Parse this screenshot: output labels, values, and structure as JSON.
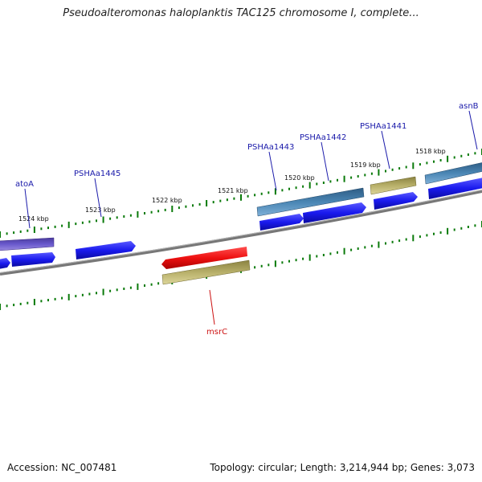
{
  "title": "Pseudoalteromonas haloplanktis TAC125 chromosome I, complete...",
  "footer": {
    "accession_label": "Accession:",
    "accession": "NC_007481",
    "topology_label": "Topology:",
    "topology": "circular",
    "length_label": "Length:",
    "length": "3,214,944 bp",
    "genes_label": "Genes:",
    "genes": "3,073"
  },
  "colors": {
    "backbone": "#7a7a7a",
    "tick": "#0a7a0a",
    "cds": "#1a1aee",
    "gene_blue_gray": "#4a86b4",
    "gene_purple": "#6a5acd",
    "gene_khaki": "#b8b06a",
    "gene_red": "#ee1111",
    "label_blue": "#1a1aaa",
    "label_red": "#cc1111"
  },
  "scale": {
    "unit": "kbp",
    "labels": [
      "1524 kbp",
      "1523 kbp",
      "1522 kbp",
      "1521 kbp",
      "1520 kbp",
      "1519 kbp",
      "1518 kbp"
    ]
  },
  "genes": [
    {
      "name": "atoA",
      "color": "label_blue"
    },
    {
      "name": "PSHAa1445",
      "color": "label_blue"
    },
    {
      "name": "PSHAa1443",
      "color": "label_blue"
    },
    {
      "name": "PSHAa1442",
      "color": "label_blue"
    },
    {
      "name": "PSHAa1441",
      "color": "label_blue"
    },
    {
      "name": "asnB",
      "color": "label_blue"
    },
    {
      "name": "msrC",
      "color": "label_red"
    }
  ]
}
